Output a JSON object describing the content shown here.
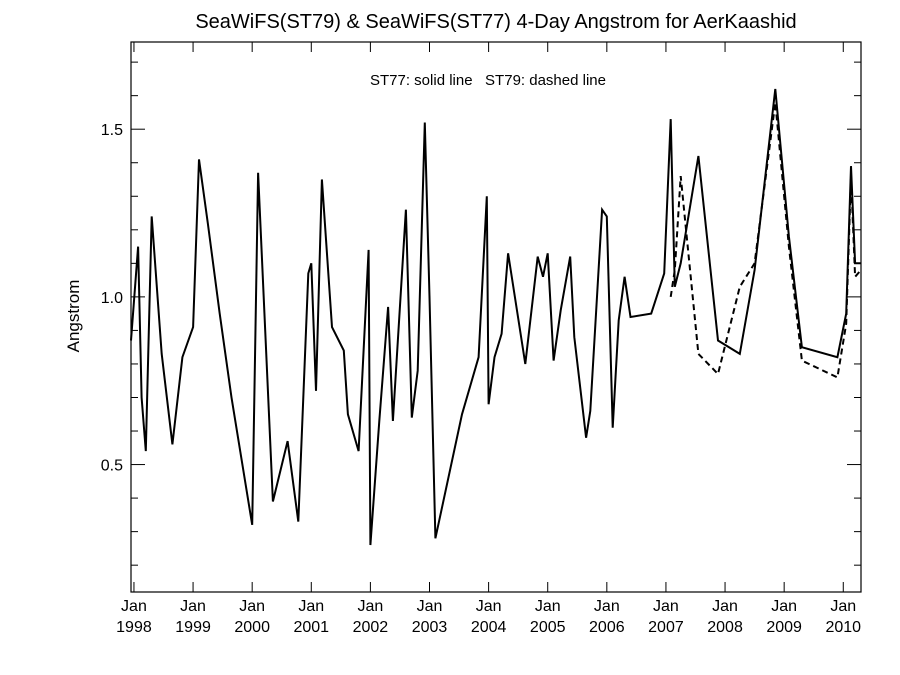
{
  "chart_data": {
    "type": "line",
    "title": "SeaWiFS(ST79) & SeaWiFS(ST77) 4-Day Angstrom for AerKaashid",
    "annotation": "ST77: solid line   ST79: dashed line",
    "xlabel": "",
    "ylabel": "Angstrom",
    "xlim": [
      1997.95,
      2010.3
    ],
    "ylim": [
      0.12,
      1.76
    ],
    "yticks": [
      {
        "value": 0.5,
        "label": "0.5"
      },
      {
        "value": 1.0,
        "label": "1.0"
      },
      {
        "value": 1.5,
        "label": "1.5"
      }
    ],
    "xticks": [
      {
        "value": 1998,
        "month": "Jan",
        "year": "1998"
      },
      {
        "value": 1999,
        "month": "Jan",
        "year": "1999"
      },
      {
        "value": 2000,
        "month": "Jan",
        "year": "2000"
      },
      {
        "value": 2001,
        "month": "Jan",
        "year": "2001"
      },
      {
        "value": 2002,
        "month": "Jan",
        "year": "2002"
      },
      {
        "value": 2003,
        "month": "Jan",
        "year": "2003"
      },
      {
        "value": 2004,
        "month": "Jan",
        "year": "2004"
      },
      {
        "value": 2005,
        "month": "Jan",
        "year": "2005"
      },
      {
        "value": 2006,
        "month": "Jan",
        "year": "2006"
      },
      {
        "value": 2007,
        "month": "Jan",
        "year": "2007"
      },
      {
        "value": 2008,
        "month": "Jan",
        "year": "2008"
      },
      {
        "value": 2009,
        "month": "Jan",
        "year": "2009"
      },
      {
        "value": 2010,
        "month": "Jan",
        "year": "2010"
      }
    ],
    "series": [
      {
        "name": "ST77",
        "style": "solid",
        "x": [
          1997.95,
          1998.07,
          1998.13,
          1998.2,
          1998.3,
          1998.47,
          1998.65,
          1998.82,
          1999.0,
          1999.1,
          1999.25,
          1999.45,
          1999.65,
          2000.0,
          2000.1,
          2000.22,
          2000.35,
          2000.6,
          2000.78,
          2000.95,
          2001.0,
          2001.08,
          2001.18,
          2001.35,
          2001.55,
          2001.62,
          2001.8,
          2001.97,
          2002.0,
          2002.15,
          2002.3,
          2002.38,
          2002.6,
          2002.7,
          2002.8,
          2002.92,
          2003.0,
          2003.1,
          2003.55,
          2003.83,
          2003.97,
          2004.0,
          2004.1,
          2004.22,
          2004.33,
          2004.62,
          2004.83,
          2004.92,
          2005.0,
          2005.1,
          2005.22,
          2005.38,
          2005.45,
          2005.65,
          2005.72,
          2005.92,
          2006.0,
          2006.1,
          2006.2,
          2006.3,
          2006.4,
          2006.75,
          2006.97,
          2007.08,
          2007.15,
          2007.25,
          2007.55,
          2007.88,
          2008.25,
          2008.5,
          2008.85,
          2009.08,
          2009.3,
          2009.9,
          2010.05,
          2010.13,
          2010.2,
          2010.3
        ],
        "y": [
          0.87,
          1.15,
          0.7,
          0.54,
          1.24,
          0.83,
          0.56,
          0.82,
          0.91,
          1.41,
          1.22,
          0.95,
          0.7,
          0.32,
          1.37,
          0.9,
          0.39,
          0.57,
          0.33,
          1.07,
          1.1,
          0.72,
          1.35,
          0.91,
          0.84,
          0.65,
          0.54,
          1.14,
          0.26,
          0.63,
          0.97,
          0.63,
          1.26,
          0.64,
          0.78,
          1.52,
          1.0,
          0.28,
          0.65,
          0.82,
          1.3,
          0.68,
          0.82,
          0.89,
          1.13,
          0.8,
          1.12,
          1.06,
          1.13,
          0.81,
          0.96,
          1.12,
          0.88,
          0.58,
          0.66,
          1.26,
          1.24,
          0.61,
          0.93,
          1.06,
          0.94,
          0.95,
          1.07,
          1.53,
          1.03,
          1.1,
          1.42,
          0.87,
          0.83,
          1.08,
          1.62,
          1.18,
          0.85,
          0.82,
          0.95,
          1.39,
          1.1,
          1.1
        ]
      },
      {
        "name": "ST79",
        "style": "dashed",
        "x": [
          2007.08,
          2007.15,
          2007.25,
          2007.55,
          2007.88,
          2008.25,
          2008.5,
          2008.85,
          2009.08,
          2009.3,
          2009.9,
          2010.05,
          2010.13,
          2010.2,
          2010.3
        ],
        "y": [
          1.0,
          1.08,
          1.36,
          0.83,
          0.77,
          1.03,
          1.1,
          1.58,
          1.15,
          0.81,
          0.76,
          0.92,
          1.36,
          1.06,
          1.08
        ]
      }
    ]
  }
}
